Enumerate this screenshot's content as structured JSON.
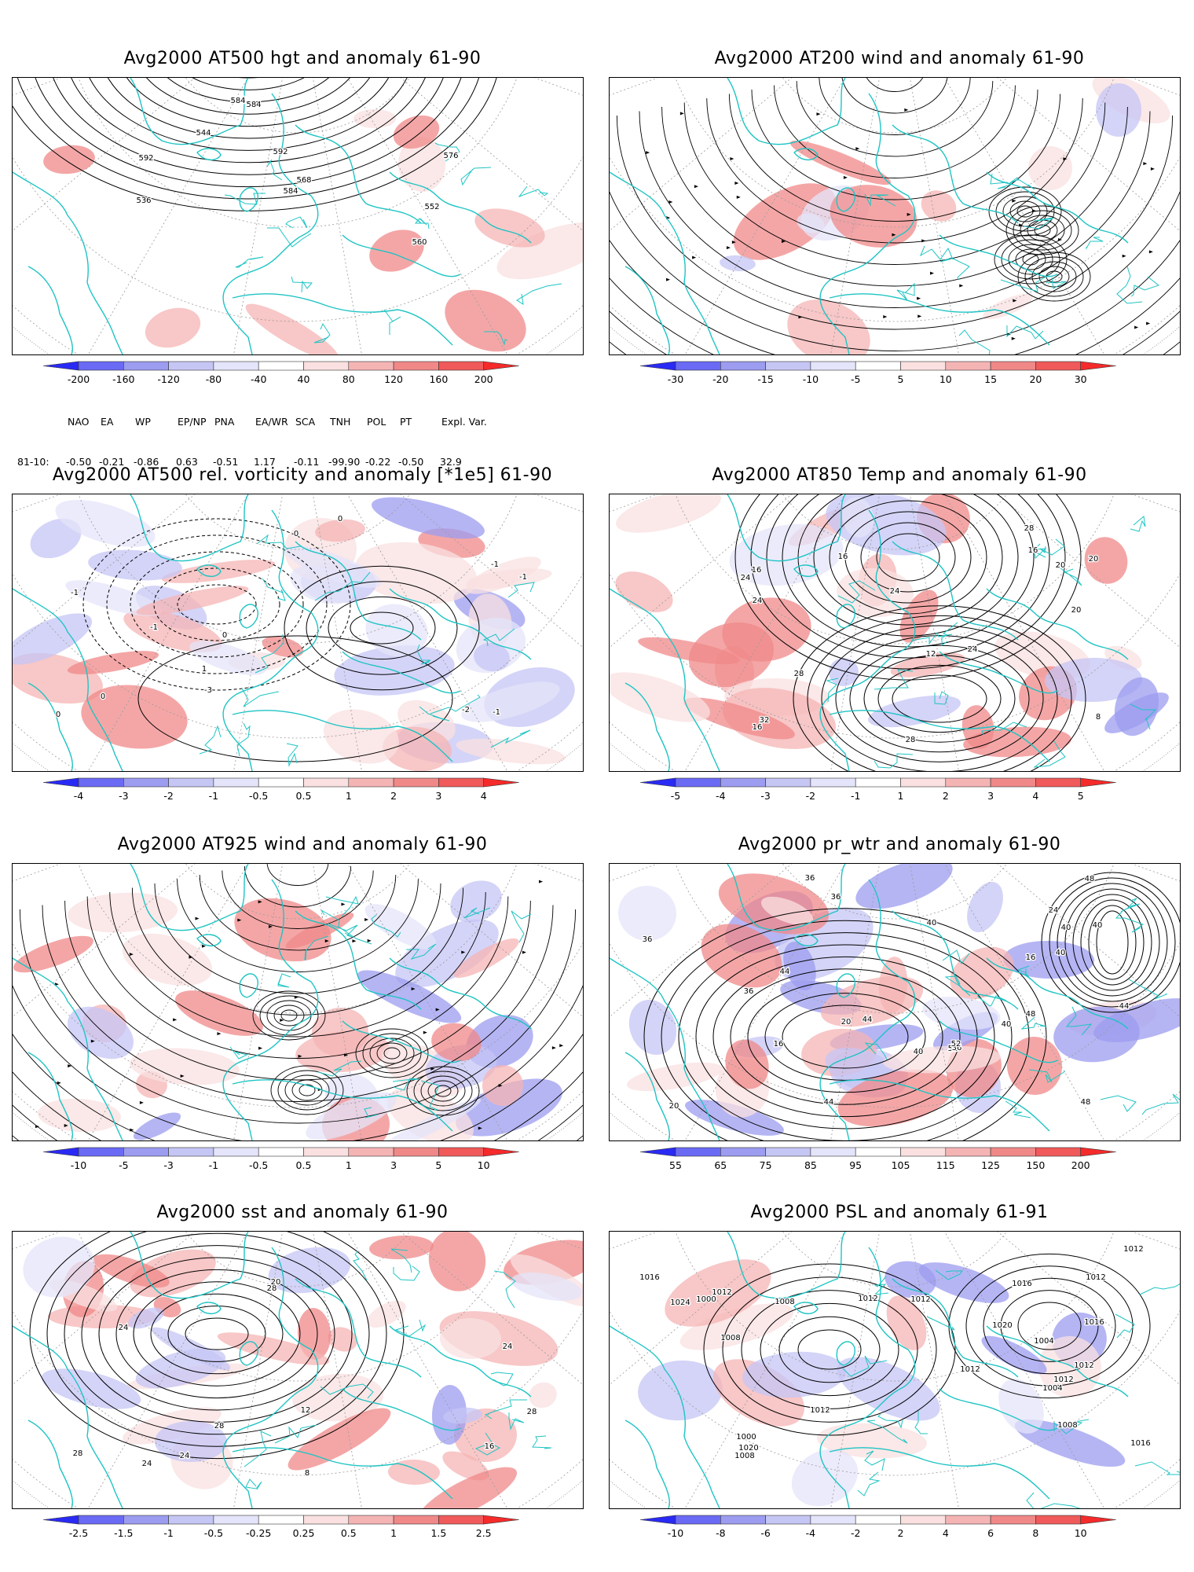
{
  "panels": [
    {
      "id": "hgt500",
      "title": "Avg2000 AT500 hgt and anomaly 61-90",
      "colorbar_labels": [
        "-200",
        "-160",
        "-120",
        "-80",
        "-40",
        "40",
        "80",
        "120",
        "160",
        "200"
      ],
      "contour_labels": [
        "536",
        "544",
        "552",
        "560",
        "568",
        "576",
        "584",
        "592",
        "592",
        "584",
        "584"
      ]
    },
    {
      "id": "wind200",
      "title": "Avg2000 AT200 wind and anomaly 61-90",
      "colorbar_labels": [
        "-30",
        "-20",
        "-15",
        "-10",
        "-5",
        "5",
        "10",
        "15",
        "20",
        "30"
      ],
      "contour_labels": []
    },
    {
      "id": "vort500",
      "title": "Avg2000 AT500 rel. vorticity and anomaly [*1e5] 61-90",
      "colorbar_labels": [
        "-4",
        "-3",
        "-2",
        "-1",
        "-0.5",
        "0.5",
        "1",
        "2",
        "3",
        "4"
      ],
      "contour_labels": [
        "0",
        "0",
        "0",
        "-1",
        "-1",
        "-2",
        "-1",
        "1",
        "-1",
        "-3",
        "-1",
        "0",
        "0"
      ]
    },
    {
      "id": "temp850",
      "title": "Avg2000 AT850 Temp and anomaly 61-90",
      "colorbar_labels": [
        "-5",
        "-4",
        "-3",
        "-2",
        "-1",
        "1",
        "2",
        "3",
        "4",
        "5"
      ],
      "contour_labels": [
        "24",
        "20",
        "16",
        "8",
        "12",
        "16",
        "20",
        "32",
        "28",
        "28",
        "24",
        "28",
        "24",
        "20",
        "16",
        "16",
        "24"
      ]
    },
    {
      "id": "wind925",
      "title": "Avg2000 AT925 wind and anomaly 61-90",
      "colorbar_labels": [
        "-10",
        "-5",
        "-3",
        "-1",
        "-0.5",
        "0.5",
        "1",
        "3",
        "5",
        "10"
      ],
      "contour_labels": []
    },
    {
      "id": "prwtr",
      "title": "Avg2000 pr_wtr and anomaly 61-90",
      "colorbar_labels": [
        "55",
        "65",
        "75",
        "85",
        "95",
        "105",
        "115",
        "125",
        "150",
        "200"
      ],
      "contour_labels": [
        "40",
        "44",
        "36",
        "40",
        "48",
        "52",
        "36",
        "36",
        "40",
        "36",
        "40",
        "44",
        "48",
        "44",
        "40",
        "36",
        "20",
        "16",
        "24",
        "20",
        "16",
        "48",
        "52",
        "44",
        "40"
      ]
    },
    {
      "id": "sst",
      "title": "Avg2000 sst and anomaly 61-90",
      "colorbar_labels": [
        "-2.5",
        "-1.5",
        "-1",
        "-0.5",
        "-0.25",
        "0.25",
        "0.5",
        "1",
        "1.5",
        "2.5"
      ],
      "contour_labels": [
        "24",
        "28",
        "20",
        "16",
        "12",
        "8",
        "28",
        "24",
        "28",
        "24",
        "28",
        "24"
      ]
    },
    {
      "id": "psl",
      "title": "Avg2000 PSL and anomaly 61-91",
      "colorbar_labels": [
        "-10",
        "-8",
        "-6",
        "-4",
        "-2",
        "2",
        "4",
        "6",
        "8",
        "10"
      ],
      "contour_labels": [
        "1012",
        "1016",
        "1012",
        "1012",
        "1008",
        "1012",
        "1008",
        "1004",
        "1016",
        "1000",
        "1000",
        "1020",
        "1024",
        "1020",
        "1016",
        "1016",
        "1012",
        "1012",
        "1008",
        "1012",
        "1004",
        "1008",
        "1012",
        "1012"
      ]
    }
  ],
  "teleconnections": {
    "headers": [
      "NAO",
      "EA",
      "WP",
      "EP/NP",
      "PNA",
      "EA/WR",
      "SCA",
      "TNH",
      "POL",
      "PT",
      "Expl. Var."
    ],
    "row_label": "81-10:",
    "values": [
      "-0.50",
      "-0.21",
      "-0.86",
      "0.63",
      "-0.51",
      "1.17",
      "-0.11",
      "-99.90",
      "-0.22",
      "-0.50",
      "32.9"
    ]
  },
  "colors": {
    "coastline": "#1fc4c4",
    "contour": "#000000",
    "grid": "#9a9a9a",
    "colorbar": [
      "#2a2af5",
      "#6a6af5",
      "#9c9cf0",
      "#c6c6f5",
      "#e4e4fa",
      "#ffffff",
      "#fae0e0",
      "#f5b4b4",
      "#f08888",
      "#f05a5a",
      "#f52a2a"
    ]
  }
}
